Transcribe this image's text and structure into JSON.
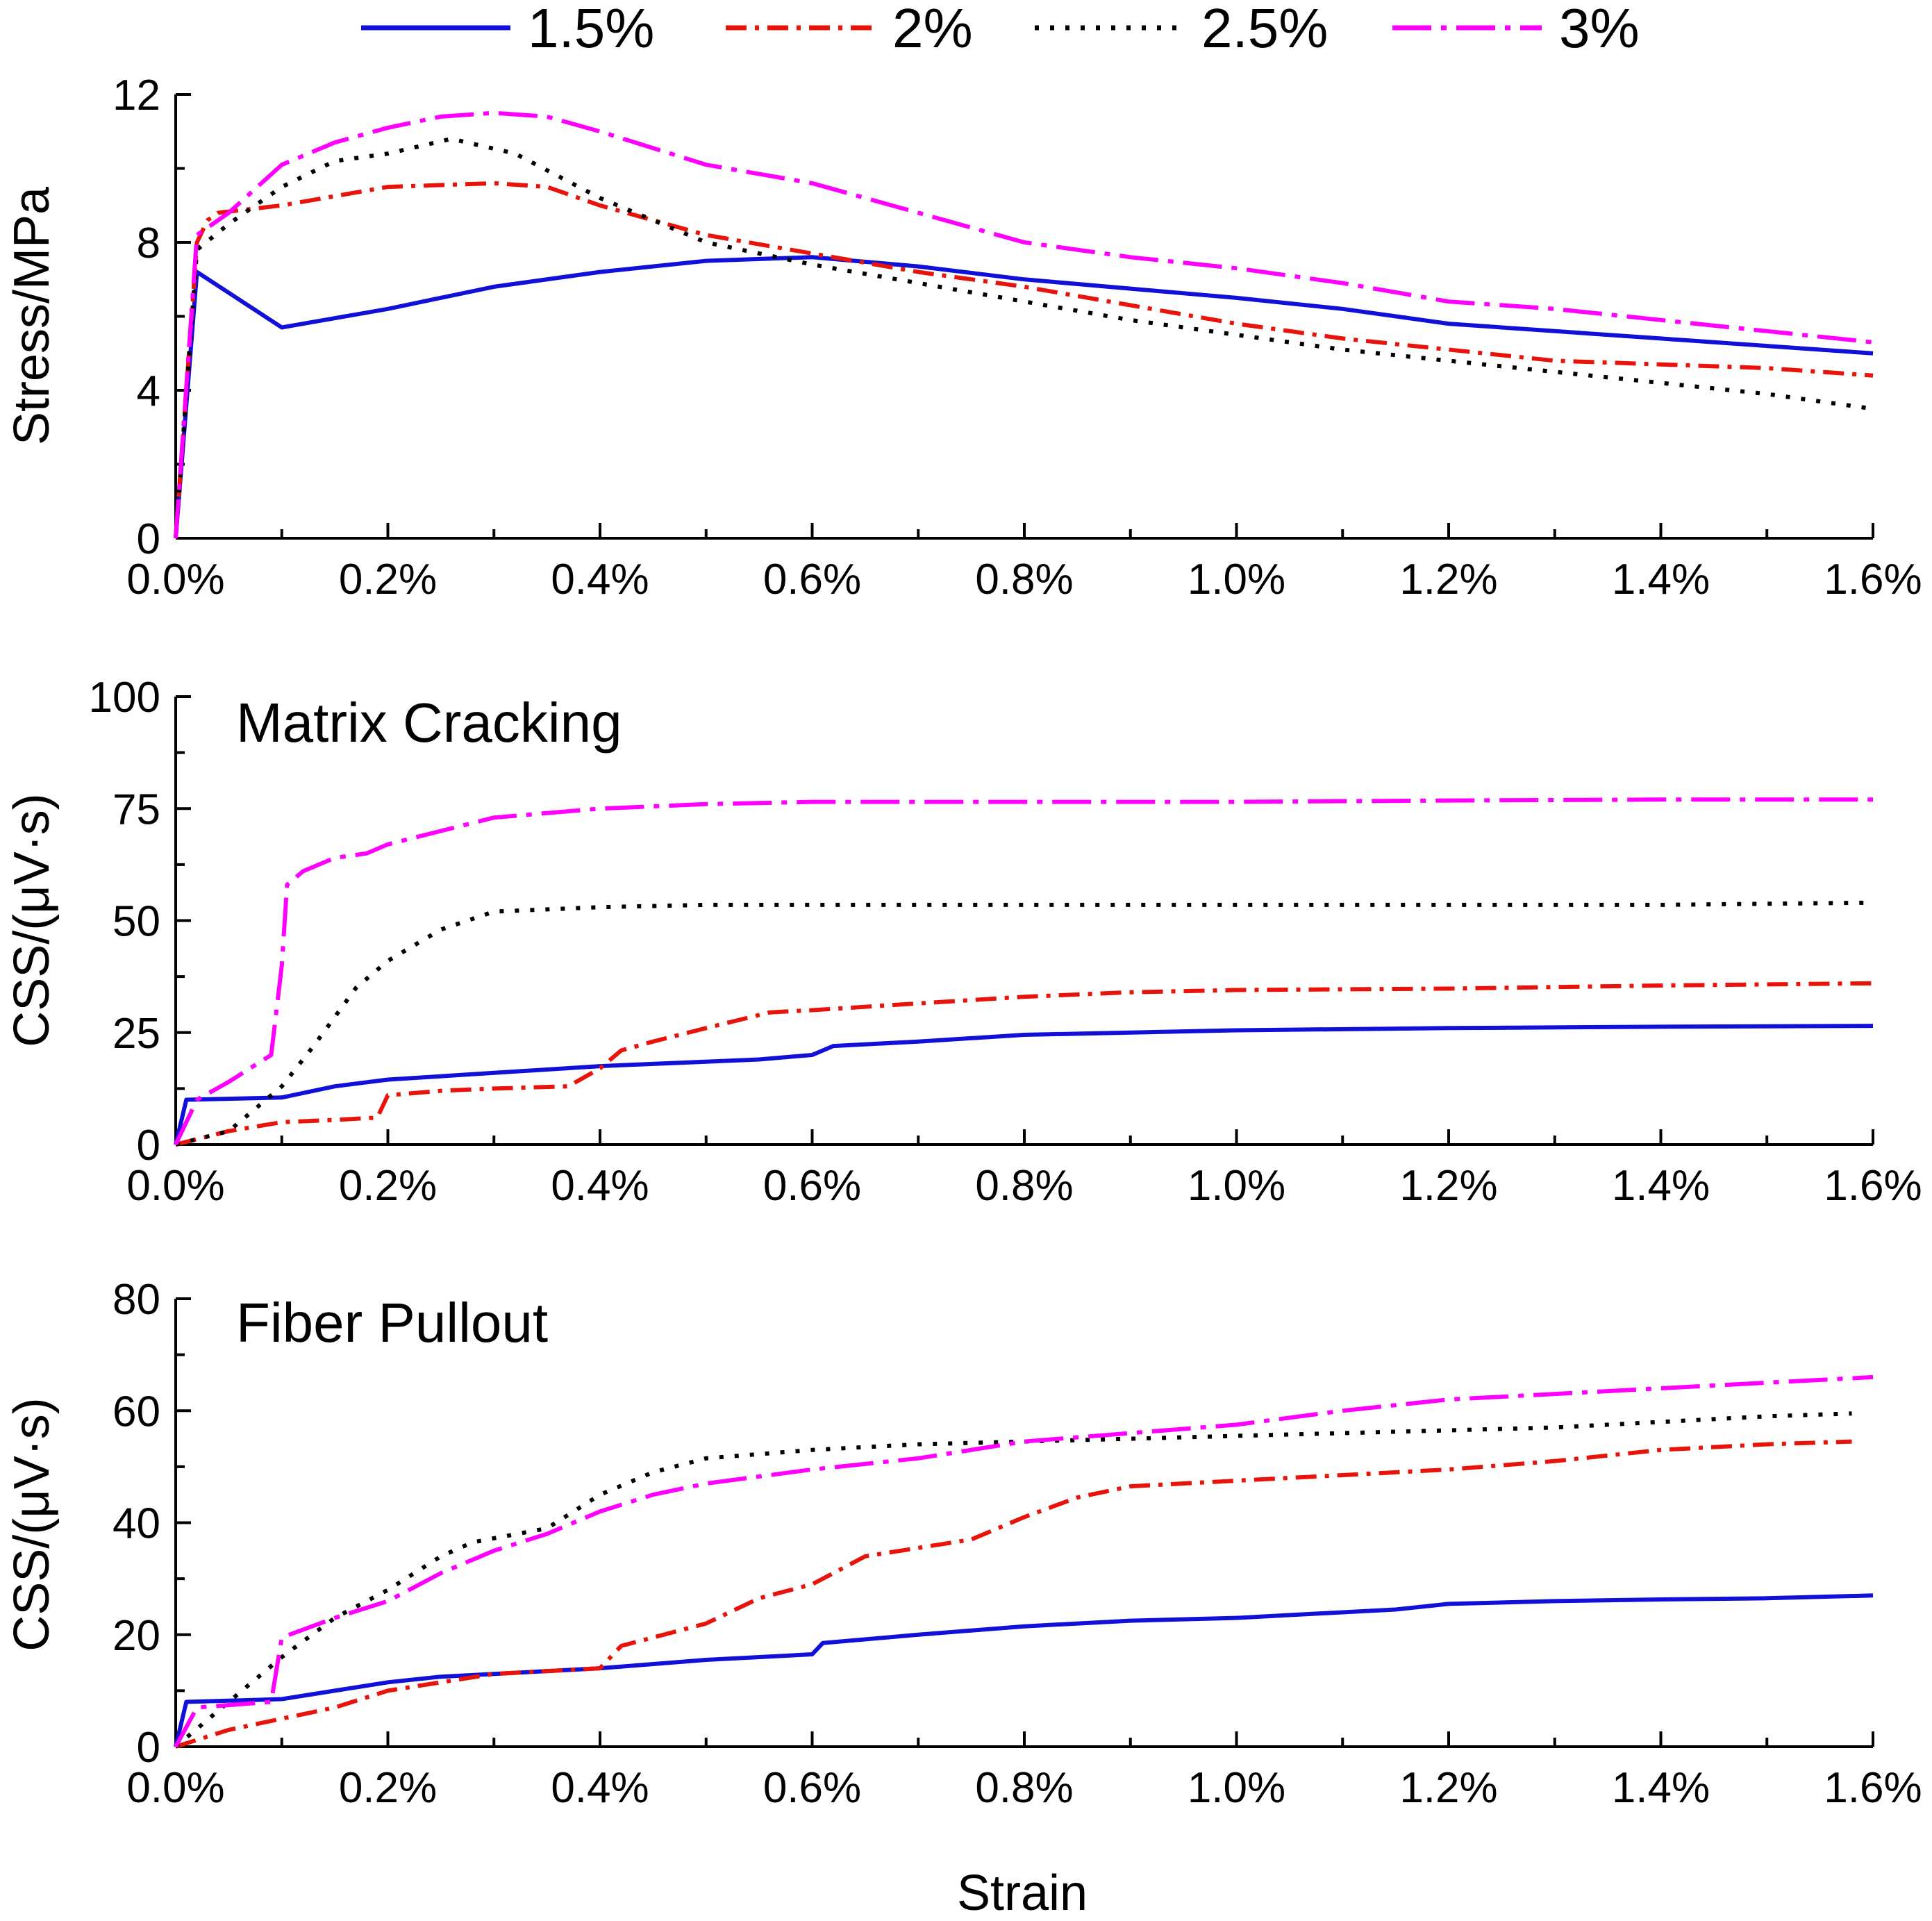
{
  "legend": {
    "placement": "top",
    "entries": [
      "1.5%",
      "2%",
      "2.5%",
      "3%"
    ]
  },
  "series_styles": [
    {
      "name": "1.5%",
      "color": "#1010d8",
      "dash": "solid"
    },
    {
      "name": "2%",
      "color": "#e8140c",
      "dash": "dash-dot"
    },
    {
      "name": "2.5%",
      "color": "#000000",
      "dash": "dot"
    },
    {
      "name": "3%",
      "color": "#ff00ff",
      "dash": "long-dash-dot"
    }
  ],
  "xlabel": "Strain",
  "chart_data": [
    {
      "type": "line",
      "title": "",
      "xlabel": "",
      "ylabel": "Stress/MPa",
      "xlim": [
        0,
        1.6
      ],
      "ylim": [
        0,
        12
      ],
      "x_unit": "%",
      "x_ticks": [
        "0.0%",
        "0.2%",
        "0.4%",
        "0.6%",
        "0.8%",
        "1.0%",
        "1.2%",
        "1.4%",
        "1.6%"
      ],
      "y_ticks": [
        "0",
        "4",
        "8",
        "12"
      ],
      "grid": false,
      "series": [
        {
          "name": "1.5%",
          "x": [
            0,
            0.02,
            0.1,
            0.11,
            0.2,
            0.3,
            0.4,
            0.5,
            0.6,
            0.7,
            0.8,
            0.9,
            1.0,
            1.1,
            1.2,
            1.3,
            1.4,
            1.5,
            1.6
          ],
          "y": [
            0,
            7.2,
            5.7,
            5.75,
            6.2,
            6.8,
            7.2,
            7.5,
            7.6,
            7.35,
            7.0,
            6.75,
            6.5,
            6.2,
            5.8,
            5.6,
            5.4,
            5.2,
            5.0
          ]
        },
        {
          "name": "2%",
          "x": [
            0,
            0.02,
            0.03,
            0.04,
            0.1,
            0.2,
            0.3,
            0.35,
            0.4,
            0.5,
            0.6,
            0.7,
            0.8,
            0.9,
            1.0,
            1.1,
            1.2,
            1.3,
            1.4,
            1.5,
            1.6
          ],
          "y": [
            0,
            8.0,
            8.6,
            8.8,
            9.0,
            9.5,
            9.6,
            9.5,
            9.0,
            8.2,
            7.7,
            7.2,
            6.8,
            6.3,
            5.8,
            5.4,
            5.1,
            4.8,
            4.7,
            4.6,
            4.4
          ]
        },
        {
          "name": "2.5%",
          "x": [
            0,
            0.02,
            0.05,
            0.1,
            0.15,
            0.2,
            0.26,
            0.32,
            0.36,
            0.4,
            0.5,
            0.6,
            0.7,
            0.8,
            0.9,
            1.0,
            1.1,
            1.2,
            1.3,
            1.4,
            1.5,
            1.6
          ],
          "y": [
            0,
            7.8,
            8.5,
            9.5,
            10.2,
            10.4,
            10.8,
            10.4,
            9.8,
            9.2,
            8.0,
            7.4,
            6.9,
            6.4,
            5.9,
            5.5,
            5.1,
            4.8,
            4.5,
            4.2,
            3.9,
            3.5
          ]
        },
        {
          "name": "3%",
          "x": [
            0,
            0.02,
            0.05,
            0.1,
            0.15,
            0.2,
            0.25,
            0.3,
            0.35,
            0.4,
            0.5,
            0.6,
            0.7,
            0.8,
            0.9,
            1.0,
            1.1,
            1.2,
            1.3,
            1.4,
            1.5,
            1.6
          ],
          "y": [
            0,
            8.2,
            8.8,
            10.1,
            10.7,
            11.1,
            11.4,
            11.5,
            11.4,
            11.0,
            10.1,
            9.6,
            8.8,
            8.0,
            7.6,
            7.3,
            6.9,
            6.4,
            6.2,
            5.9,
            5.6,
            5.3
          ]
        }
      ]
    },
    {
      "type": "line",
      "title": "Matrix Cracking",
      "xlabel": "",
      "ylabel": "CSS/(μV·s)",
      "xlim": [
        0,
        1.6
      ],
      "ylim": [
        0,
        100
      ],
      "x_unit": "%",
      "x_ticks": [
        "0.0%",
        "0.2%",
        "0.4%",
        "0.6%",
        "0.8%",
        "1.0%",
        "1.2%",
        "1.4%",
        "1.6%"
      ],
      "y_ticks": [
        "0",
        "25",
        "50",
        "75",
        "100"
      ],
      "grid": false,
      "series": [
        {
          "name": "1.5%",
          "x": [
            0,
            0.01,
            0.1,
            0.15,
            0.2,
            0.3,
            0.4,
            0.55,
            0.6,
            0.62,
            0.7,
            0.8,
            1.0,
            1.2,
            1.4,
            1.6
          ],
          "y": [
            0,
            10,
            10.5,
            13,
            14.5,
            16,
            17.5,
            19,
            20,
            22,
            23,
            24.5,
            25.5,
            26,
            26.3,
            26.5
          ]
        },
        {
          "name": "2%",
          "x": [
            0,
            0.05,
            0.1,
            0.15,
            0.19,
            0.2,
            0.25,
            0.3,
            0.37,
            0.4,
            0.42,
            0.45,
            0.5,
            0.56,
            0.6,
            0.7,
            0.8,
            0.9,
            1.0,
            1.2,
            1.4,
            1.6
          ],
          "y": [
            0,
            3,
            5,
            5.5,
            6,
            11,
            12,
            12.5,
            13,
            17,
            21,
            23,
            26,
            29.5,
            30,
            31.5,
            33,
            34,
            34.5,
            34.8,
            35.5,
            36
          ]
        },
        {
          "name": "2.5%",
          "x": [
            0,
            0.05,
            0.1,
            0.13,
            0.17,
            0.2,
            0.25,
            0.3,
            0.4,
            0.5,
            0.6,
            0.8,
            1.0,
            1.2,
            1.4,
            1.6
          ],
          "y": [
            0,
            3,
            13,
            22,
            35,
            41,
            48,
            52,
            53,
            53.5,
            53.5,
            53.5,
            53.5,
            53.5,
            53.5,
            54
          ]
        },
        {
          "name": "3%",
          "x": [
            0,
            0.02,
            0.05,
            0.09,
            0.1,
            0.105,
            0.12,
            0.15,
            0.18,
            0.2,
            0.25,
            0.3,
            0.4,
            0.5,
            0.6,
            0.8,
            1.0,
            1.2,
            1.4,
            1.6
          ],
          "y": [
            0,
            10,
            14,
            20,
            40,
            58,
            61,
            64,
            65,
            67,
            70,
            73,
            75,
            76,
            76.5,
            76.5,
            76.5,
            76.8,
            77,
            77
          ]
        }
      ]
    },
    {
      "type": "line",
      "title": "Fiber Pullout",
      "xlabel": "Strain",
      "ylabel": "CSS/(μV·s)",
      "xlim": [
        0,
        1.6
      ],
      "ylim": [
        0,
        80
      ],
      "x_unit": "%",
      "x_ticks": [
        "0.0%",
        "0.2%",
        "0.4%",
        "0.6%",
        "0.8%",
        "1.0%",
        "1.2%",
        "1.4%",
        "1.6%"
      ],
      "y_ticks": [
        "0",
        "20",
        "40",
        "60",
        "80"
      ],
      "grid": false,
      "series": [
        {
          "name": "1.5%",
          "x": [
            0,
            0.01,
            0.1,
            0.15,
            0.2,
            0.25,
            0.3,
            0.4,
            0.5,
            0.6,
            0.61,
            0.7,
            0.8,
            0.9,
            1.0,
            1.05,
            1.1,
            1.15,
            1.2,
            1.3,
            1.4,
            1.5,
            1.6
          ],
          "y": [
            0,
            8,
            8.5,
            10,
            11.5,
            12.5,
            13,
            14,
            15.5,
            16.5,
            18.5,
            20,
            21.5,
            22.5,
            23,
            23.5,
            24,
            24.5,
            25.5,
            26,
            26.3,
            26.5,
            27
          ]
        },
        {
          "name": "2%",
          "x": [
            0,
            0.05,
            0.1,
            0.15,
            0.2,
            0.25,
            0.3,
            0.35,
            0.4,
            0.42,
            0.5,
            0.55,
            0.6,
            0.65,
            0.7,
            0.75,
            0.8,
            0.85,
            0.9,
            1.0,
            1.1,
            1.2,
            1.3,
            1.4,
            1.5,
            1.58
          ],
          "y": [
            0,
            3,
            5,
            7,
            10,
            11.5,
            13,
            13.5,
            14,
            18,
            22,
            26.5,
            29,
            34,
            35.5,
            37,
            41,
            44.5,
            46.5,
            47.5,
            48.5,
            49.5,
            51,
            53,
            54,
            54.5
          ]
        },
        {
          "name": "2.5%",
          "x": [
            0,
            0.05,
            0.1,
            0.15,
            0.2,
            0.25,
            0.28,
            0.35,
            0.4,
            0.45,
            0.5,
            0.6,
            0.7,
            0.8,
            0.9,
            1.0,
            1.1,
            1.2,
            1.3,
            1.4,
            1.5,
            1.58
          ],
          "y": [
            0,
            8,
            16,
            23,
            28,
            34,
            36.5,
            39,
            45,
            49,
            51.5,
            53,
            54,
            54.5,
            55,
            55.5,
            56,
            56.5,
            57,
            58,
            59,
            59.5
          ]
        },
        {
          "name": "3%",
          "x": [
            0,
            0.02,
            0.09,
            0.1,
            0.15,
            0.2,
            0.25,
            0.3,
            0.35,
            0.4,
            0.45,
            0.5,
            0.6,
            0.7,
            0.8,
            0.9,
            1.0,
            1.1,
            1.2,
            1.3,
            1.4,
            1.5,
            1.6
          ],
          "y": [
            0,
            7,
            8,
            19.5,
            23,
            26,
            31,
            35,
            38,
            42,
            45,
            47,
            49.5,
            51.5,
            54.5,
            56,
            57.5,
            60,
            62,
            63,
            64,
            65,
            66
          ]
        }
      ]
    }
  ]
}
